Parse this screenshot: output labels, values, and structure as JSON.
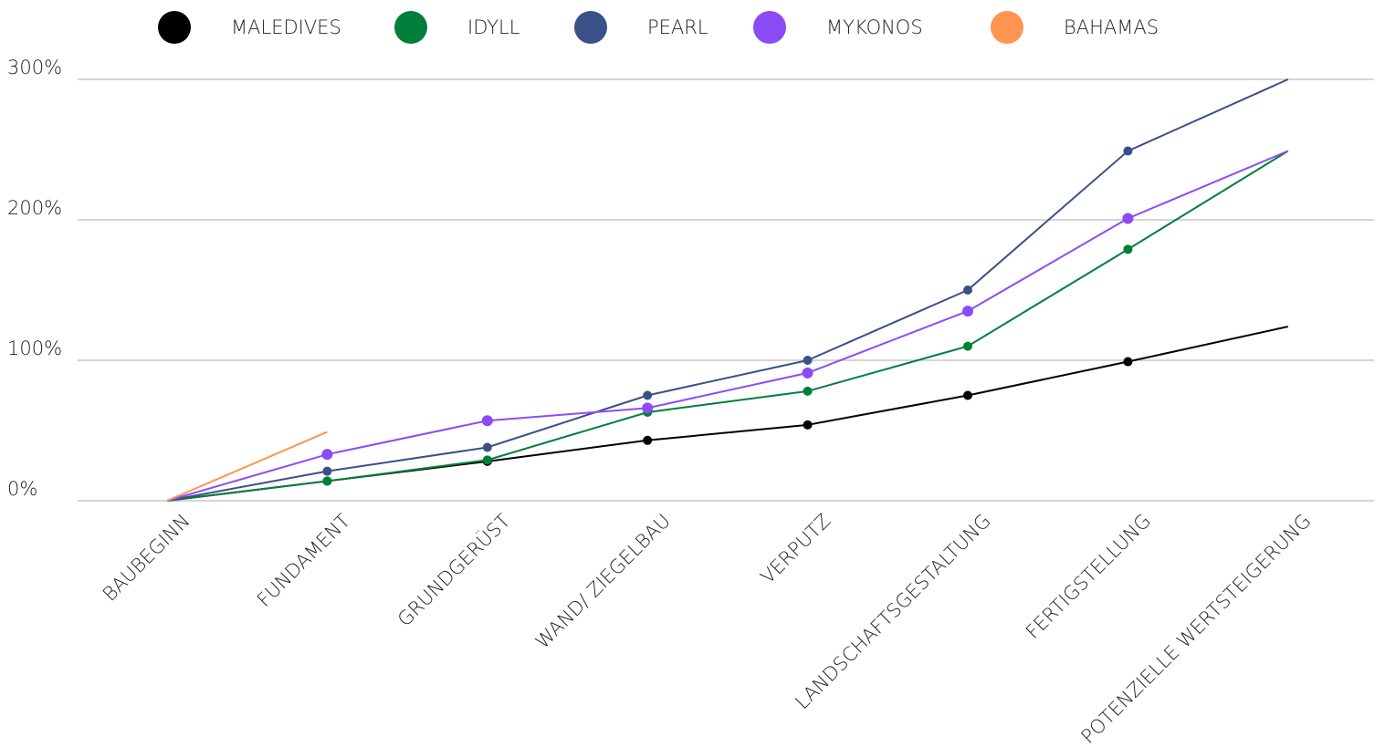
{
  "chart_data": {
    "type": "line",
    "categories": [
      "BAUBEGINN",
      "FUNDAMENT",
      "GRUNDGERÜST",
      "WAND/ ZIEGELBAU",
      "VERPUTZ",
      "LANDSCHAFTSGESTALTUNG",
      "FERTIGSTELLUNG",
      "POTENZIELLE WERTSTEIGERUNG"
    ],
    "series": [
      {
        "name": "MALEDIVES",
        "color": "#000000",
        "values": [
          0,
          14,
          28,
          43,
          54,
          75,
          99,
          124
        ]
      },
      {
        "name": "IDYLL",
        "color": "#007f3b",
        "values": [
          0,
          14,
          29,
          63,
          78,
          110,
          179,
          249
        ]
      },
      {
        "name": "PEARL",
        "color": "#3a5088",
        "values": [
          0,
          21,
          38,
          75,
          100,
          150,
          249,
          300
        ]
      },
      {
        "name": "MYKONOS",
        "color": "#8b4cf7",
        "values": [
          0,
          33,
          57,
          66,
          91,
          135,
          201,
          249
        ]
      },
      {
        "name": "BAHAMAS",
        "color": "#ff9550",
        "values": [
          0,
          49,
          null,
          null,
          null,
          null,
          null,
          null
        ]
      }
    ],
    "ylim": [
      0,
      300
    ],
    "yticks": [
      {
        "value": 0,
        "label": "0%"
      },
      {
        "value": 100,
        "label": "100%"
      },
      {
        "value": 200,
        "label": "200%"
      },
      {
        "value": 300,
        "label": "300%"
      }
    ],
    "grid": true,
    "legend": "top"
  }
}
